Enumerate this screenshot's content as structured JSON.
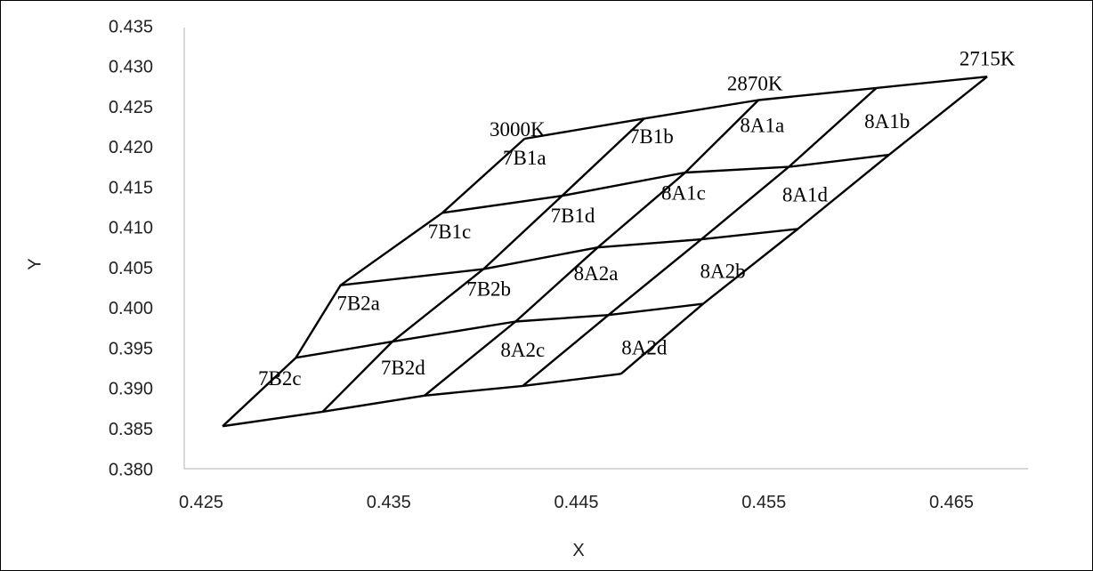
{
  "chart_data": {
    "type": "line",
    "xlabel": "X",
    "ylabel": "Y",
    "xlim": [
      0.425,
      0.47
    ],
    "ylim": [
      0.38,
      0.435
    ],
    "x_ticks": [
      "0.425",
      "0.435",
      "0.445",
      "0.455",
      "0.465"
    ],
    "y_ticks": [
      "0.380",
      "0.385",
      "0.390",
      "0.395",
      "0.400",
      "0.405",
      "0.410",
      "0.415",
      "0.420",
      "0.425",
      "0.430",
      "0.435"
    ],
    "grid_lines": false,
    "cct_lines": [
      {
        "points": [
          [
            0.4262,
            0.3855
          ],
          [
            0.4303,
            0.394
          ],
          [
            0.4328,
            0.403
          ],
          [
            0.4385,
            0.412
          ],
          [
            0.4431,
            0.4212
          ]
        ]
      },
      {
        "points": [
          [
            0.4318,
            0.3873
          ],
          [
            0.4357,
            0.396
          ],
          [
            0.4408,
            0.405
          ],
          [
            0.4452,
            0.4141
          ],
          [
            0.4498,
            0.4237
          ]
        ]
      },
      {
        "points": [
          [
            0.4375,
            0.3893
          ],
          [
            0.4426,
            0.3985
          ],
          [
            0.4472,
            0.4077
          ],
          [
            0.4521,
            0.417
          ],
          [
            0.4562,
            0.426
          ]
        ]
      },
      {
        "points": [
          [
            0.443,
            0.3905
          ],
          [
            0.4478,
            0.3993
          ],
          [
            0.453,
            0.4087
          ],
          [
            0.4579,
            0.4177
          ],
          [
            0.4628,
            0.4275
          ]
        ]
      },
      {
        "points": [
          [
            0.4485,
            0.392
          ],
          [
            0.4531,
            0.4007
          ],
          [
            0.4584,
            0.41
          ],
          [
            0.4635,
            0.4192
          ],
          [
            0.469,
            0.4289
          ]
        ]
      }
    ],
    "duv_lines": [
      {
        "points": [
          [
            0.4262,
            0.3855
          ],
          [
            0.4318,
            0.3873
          ],
          [
            0.4375,
            0.3893
          ],
          [
            0.443,
            0.3905
          ],
          [
            0.4485,
            0.392
          ]
        ]
      },
      {
        "points": [
          [
            0.4303,
            0.394
          ],
          [
            0.4357,
            0.396
          ],
          [
            0.4426,
            0.3985
          ],
          [
            0.4478,
            0.3993
          ],
          [
            0.4531,
            0.4007
          ]
        ]
      },
      {
        "points": [
          [
            0.4328,
            0.403
          ],
          [
            0.4408,
            0.405
          ],
          [
            0.4472,
            0.4077
          ],
          [
            0.453,
            0.4087
          ],
          [
            0.4584,
            0.41
          ]
        ]
      },
      {
        "points": [
          [
            0.4385,
            0.412
          ],
          [
            0.4452,
            0.4141
          ],
          [
            0.4521,
            0.417
          ],
          [
            0.4579,
            0.4177
          ],
          [
            0.4635,
            0.4192
          ]
        ]
      },
      {
        "points": [
          [
            0.4431,
            0.4212
          ],
          [
            0.4498,
            0.4237
          ],
          [
            0.4562,
            0.426
          ],
          [
            0.4628,
            0.4275
          ],
          [
            0.469,
            0.4289
          ]
        ]
      }
    ],
    "bin_labels": [
      {
        "text": "7B1a",
        "x": 0.4431,
        "y": 0.4186
      },
      {
        "text": "7B1b",
        "x": 0.4502,
        "y": 0.4212
      },
      {
        "text": "8A1a",
        "x": 0.4564,
        "y": 0.4226
      },
      {
        "text": "8A1b",
        "x": 0.4634,
        "y": 0.4231
      },
      {
        "text": "7B1c",
        "x": 0.4389,
        "y": 0.4094
      },
      {
        "text": "7B1d",
        "x": 0.4458,
        "y": 0.4114
      },
      {
        "text": "8A1c",
        "x": 0.452,
        "y": 0.4142
      },
      {
        "text": "8A1d",
        "x": 0.4588,
        "y": 0.414
      },
      {
        "text": "7B2a",
        "x": 0.4338,
        "y": 0.4005
      },
      {
        "text": "7B2b",
        "x": 0.4411,
        "y": 0.4023
      },
      {
        "text": "8A2a",
        "x": 0.4471,
        "y": 0.4042
      },
      {
        "text": "8A2b",
        "x": 0.4542,
        "y": 0.4045
      },
      {
        "text": "7B2c",
        "x": 0.4294,
        "y": 0.3912
      },
      {
        "text": "7B2d",
        "x": 0.4363,
        "y": 0.3925
      },
      {
        "text": "8A2c",
        "x": 0.443,
        "y": 0.3947
      },
      {
        "text": "8A2d",
        "x": 0.4498,
        "y": 0.395
      }
    ],
    "cct_labels": [
      {
        "text": "3000K",
        "x": 0.4427,
        "y": 0.4221
      },
      {
        "text": "2870K",
        "x": 0.456,
        "y": 0.4278
      },
      {
        "text": "2715K",
        "x": 0.469,
        "y": 0.4309
      }
    ]
  }
}
